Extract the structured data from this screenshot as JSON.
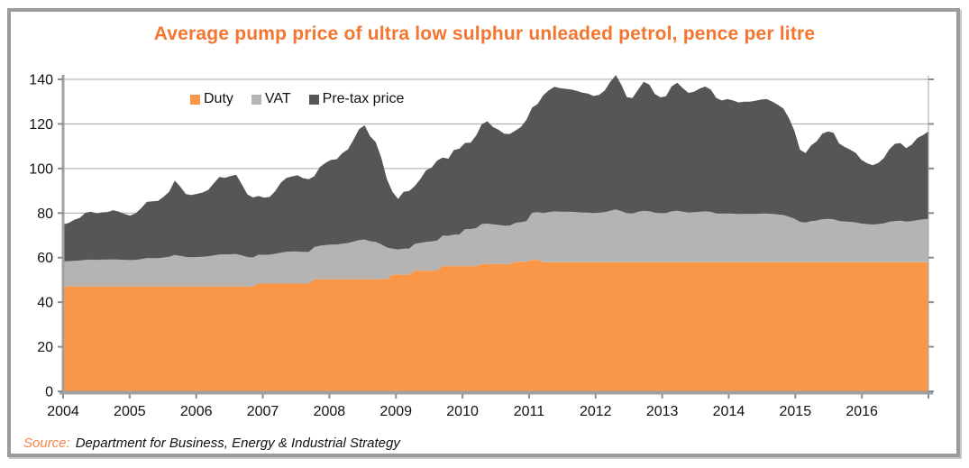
{
  "title": "Average pump price of ultra low sulphur unleaded petrol, pence per litre",
  "legend": [
    {
      "label": "Duty",
      "color": "#fa9648"
    },
    {
      "label": "VAT",
      "color": "#b5b4b3"
    },
    {
      "label": "Pre-tax price",
      "color": "#575657"
    }
  ],
  "source": {
    "prefix": "Source:",
    "text": "Department for Business, Energy & Industrial Strategy"
  },
  "colors": {
    "title": "#f4752f",
    "frame": "#9b9b9b",
    "axis": "#a0a0a0",
    "grid": "#a6a6a6",
    "tick": "#8c8c8c",
    "label": "#111111"
  },
  "chart_data": {
    "type": "area",
    "stacked": true,
    "frequency": "monthly",
    "x_start_year": 2004,
    "x_end_year": 2016,
    "x_tick_labels": [
      "2004",
      "2005",
      "2006",
      "2007",
      "2008",
      "2009",
      "2010",
      "2011",
      "2012",
      "2013",
      "2014",
      "2015",
      "2016"
    ],
    "y_ticks": [
      0,
      20,
      40,
      60,
      80,
      100,
      120,
      140
    ],
    "ylim": [
      0,
      140
    ],
    "ylabel": "pence per litre",
    "grid_on": true,
    "legend_position": "top-left-inside",
    "series": [
      {
        "name": "Duty",
        "color": "#fa9648",
        "values": [
          47.1,
          47.1,
          47.1,
          47.1,
          47.1,
          47.1,
          47.1,
          47.1,
          47.1,
          47.1,
          47.1,
          47.1,
          47.1,
          47.1,
          47.1,
          47.1,
          47.1,
          47.1,
          47.1,
          47.1,
          47.1,
          47.1,
          47.1,
          47.1,
          47.1,
          47.1,
          47.1,
          47.1,
          47.1,
          47.1,
          47.1,
          47.1,
          47.1,
          47.1,
          47.1,
          48.35,
          48.35,
          48.35,
          48.35,
          48.35,
          48.35,
          48.35,
          48.35,
          48.35,
          48.35,
          50.35,
          50.35,
          50.35,
          50.35,
          50.35,
          50.35,
          50.35,
          50.35,
          50.35,
          50.35,
          50.35,
          50.35,
          50.35,
          50.35,
          52.35,
          52.35,
          52.35,
          52.35,
          54.19,
          54.19,
          54.19,
          54.19,
          54.19,
          56.19,
          56.19,
          56.19,
          56.19,
          56.19,
          56.19,
          56.19,
          57.19,
          57.19,
          57.19,
          57.19,
          57.19,
          57.19,
          58.19,
          58.19,
          58.19,
          58.95,
          58.95,
          57.95,
          57.95,
          57.95,
          57.95,
          57.95,
          57.95,
          57.95,
          57.95,
          57.95,
          57.95,
          57.95,
          57.95,
          57.95,
          57.95,
          57.95,
          57.95,
          57.95,
          57.95,
          57.95,
          57.95,
          57.95,
          57.95,
          57.95,
          57.95,
          57.95,
          57.95,
          57.95,
          57.95,
          57.95,
          57.95,
          57.95,
          57.95,
          57.95,
          57.95,
          57.95,
          57.95,
          57.95,
          57.95,
          57.95,
          57.95,
          57.95,
          57.95,
          57.95,
          57.95,
          57.95,
          57.95,
          57.95,
          57.95,
          57.95,
          57.95,
          57.95,
          57.95,
          57.95,
          57.95,
          57.95,
          57.95,
          57.95,
          57.95,
          57.95,
          57.95,
          57.95,
          57.95,
          57.95,
          57.95,
          57.95,
          57.95,
          57.95,
          57.95,
          57.95,
          57.95
        ]
      },
      {
        "name": "VAT",
        "color": "#b5b4b3",
        "values": [
          11.2,
          11.3,
          11.5,
          11.6,
          11.9,
          12.0,
          11.9,
          12.0,
          12.0,
          12.1,
          12.0,
          11.9,
          11.8,
          11.9,
          12.2,
          12.7,
          12.7,
          12.7,
          13.0,
          13.3,
          14.1,
          13.7,
          13.2,
          13.1,
          13.2,
          13.3,
          13.5,
          13.9,
          14.3,
          14.3,
          14.4,
          14.5,
          13.9,
          13.2,
          13.0,
          13.0,
          12.9,
          13.0,
          13.4,
          13.9,
          14.3,
          14.4,
          14.4,
          14.2,
          14.2,
          14.4,
          15.0,
          15.3,
          15.5,
          15.5,
          15.9,
          16.2,
          16.8,
          17.5,
          17.8,
          17.0,
          16.7,
          15.6,
          14.2,
          11.7,
          11.3,
          11.7,
          11.7,
          12.0,
          12.4,
          12.9,
          13.1,
          13.5,
          13.7,
          13.6,
          14.1,
          14.2,
          16.6,
          16.6,
          17.1,
          17.9,
          18.1,
          17.7,
          17.5,
          17.2,
          17.2,
          17.4,
          17.7,
          18.2,
          21.2,
          21.5,
          22.1,
          22.5,
          22.8,
          22.7,
          22.6,
          22.6,
          22.5,
          22.3,
          22.3,
          22.1,
          22.2,
          22.5,
          23.1,
          23.7,
          22.9,
          22.0,
          21.9,
          22.6,
          23.1,
          22.9,
          22.2,
          22.0,
          22.1,
          22.8,
          23.1,
          22.7,
          22.3,
          22.4,
          22.6,
          22.8,
          22.6,
          21.9,
          21.8,
          21.9,
          21.8,
          21.6,
          21.7,
          21.7,
          21.7,
          21.8,
          21.9,
          21.7,
          21.4,
          21.2,
          20.4,
          19.5,
          18.1,
          17.8,
          18.4,
          18.7,
          19.3,
          19.4,
          19.3,
          18.5,
          18.3,
          18.1,
          17.8,
          17.3,
          17.1,
          16.9,
          17.1,
          17.4,
          18.1,
          18.5,
          18.6,
          18.2,
          18.4,
          18.9,
          19.2,
          19.4
        ]
      },
      {
        "name": "Pre-tax price",
        "color": "#575657",
        "values": [
          16.6,
          17.2,
          18.4,
          19.2,
          21.1,
          21.5,
          20.8,
          21.2,
          21.4,
          22.1,
          21.5,
          20.6,
          20.0,
          20.9,
          22.9,
          25.2,
          25.5,
          25.7,
          27.2,
          29.2,
          33.4,
          31.0,
          28.2,
          27.9,
          28.3,
          28.8,
          29.8,
          32.4,
          34.8,
          34.4,
          35.1,
          35.6,
          32.0,
          28.1,
          26.9,
          26.3,
          25.7,
          25.9,
          28.1,
          31.4,
          33.1,
          33.7,
          34.2,
          33.1,
          32.6,
          31.8,
          35.3,
          36.9,
          38.0,
          38.3,
          40.6,
          42.0,
          45.7,
          49.8,
          51.2,
          47.1,
          44.8,
          38.9,
          30.7,
          25.5,
          22.7,
          25.5,
          25.9,
          26.0,
          28.7,
          32.1,
          33.1,
          35.9,
          35.0,
          34.6,
          38.0,
          38.5,
          38.7,
          38.8,
          41.5,
          44.8,
          45.9,
          43.7,
          42.7,
          41.2,
          41.1,
          41.4,
          42.8,
          45.5,
          47.2,
          48.5,
          52.8,
          54.6,
          55.9,
          55.4,
          55.2,
          54.9,
          54.4,
          53.8,
          53.4,
          52.5,
          52.9,
          54.5,
          57.8,
          60.3,
          56.7,
          52.0,
          51.8,
          54.8,
          57.8,
          56.8,
          53.3,
          52.0,
          52.4,
          56.1,
          57.4,
          55.4,
          53.7,
          54.1,
          55.3,
          56.0,
          54.9,
          51.8,
          50.8,
          51.3,
          50.8,
          50.1,
          50.3,
          50.3,
          50.7,
          51.2,
          51.3,
          50.4,
          49.3,
          47.8,
          44.3,
          39.4,
          32.4,
          31.2,
          34.0,
          35.6,
          38.4,
          39.3,
          38.8,
          34.8,
          33.4,
          32.4,
          31.2,
          28.6,
          27.3,
          26.6,
          27.4,
          29.3,
          32.6,
          34.6,
          34.9,
          33.0,
          34.3,
          36.8,
          37.8,
          39.3
        ]
      }
    ]
  }
}
